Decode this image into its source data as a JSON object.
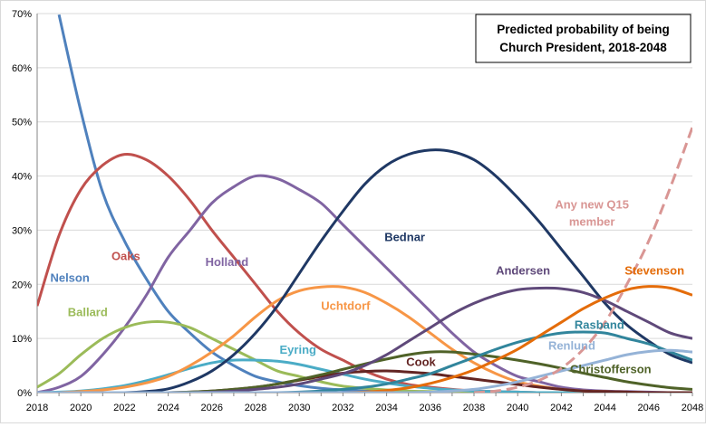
{
  "chart_data": {
    "type": "line",
    "title": "Predicted probability  of being\nChurch President, 2018-2048",
    "x": [
      2018,
      2019,
      2020,
      2021,
      2022,
      2023,
      2024,
      2025,
      2026,
      2027,
      2028,
      2029,
      2030,
      2031,
      2032,
      2033,
      2034,
      2035,
      2036,
      2037,
      2038,
      2039,
      2040,
      2041,
      2042,
      2043,
      2044,
      2045,
      2046,
      2047,
      2048
    ],
    "xticks": [
      "2018",
      "2020",
      "2022",
      "2024",
      "2026",
      "2028",
      "2030",
      "2032",
      "2034",
      "2036",
      "2038",
      "2040",
      "2042",
      "2044",
      "2046",
      "2048"
    ],
    "yticks": [
      "0%",
      "10%",
      "20%",
      "30%",
      "40%",
      "50%",
      "60%",
      "70%"
    ],
    "ylim": [
      0,
      70
    ],
    "xlim": [
      2018,
      2048
    ],
    "grid": "horizontal",
    "series": [
      {
        "name": "Nelson",
        "color": "#4f81bd",
        "dash": false,
        "values": [
          null,
          69.8,
          52,
          37,
          28,
          21,
          15,
          11,
          7.5,
          5,
          3,
          2,
          1.3,
          0.8,
          0.5,
          0.3,
          0.2,
          0.1,
          0.1,
          0,
          0,
          0,
          0,
          0,
          0,
          0,
          0,
          0,
          0,
          0,
          0
        ]
      },
      {
        "name": "Oaks",
        "color": "#c0504d",
        "dash": false,
        "values": [
          16,
          29,
          37.5,
          42,
          44,
          43,
          40,
          35.5,
          30,
          25,
          20,
          15,
          11,
          8,
          6,
          4,
          2.5,
          1.5,
          1,
          0.6,
          0.3,
          0.2,
          0.1,
          0,
          0,
          0,
          0,
          0,
          0,
          0,
          0
        ]
      },
      {
        "name": "Holland",
        "color": "#8064a2",
        "dash": false,
        "values": [
          0,
          1,
          3,
          7,
          12,
          18,
          25,
          30,
          35,
          38,
          40,
          39.5,
          37.5,
          35,
          31,
          27,
          23,
          19,
          15,
          11,
          7.5,
          5,
          3,
          2,
          1,
          0.5,
          0.3,
          0.2,
          0.1,
          0,
          0
        ]
      },
      {
        "name": "Ballard",
        "color": "#9bbb59",
        "dash": false,
        "values": [
          1,
          3.5,
          7,
          10,
          12,
          13,
          13,
          12,
          10,
          8,
          6,
          4,
          3,
          2,
          1.2,
          0.8,
          0.5,
          0.3,
          0.2,
          0.1,
          0,
          0,
          0,
          0,
          0,
          0,
          0,
          0,
          0,
          0,
          0
        ]
      },
      {
        "name": "Eyring",
        "color": "#4bacc6",
        "dash": false,
        "values": [
          0,
          0.1,
          0.3,
          0.7,
          1.3,
          2.2,
          3.3,
          4.5,
          5.5,
          6,
          6,
          5.8,
          5.2,
          4.3,
          3.4,
          2.5,
          1.8,
          1.2,
          0.8,
          0.5,
          0.3,
          0.2,
          0.1,
          0,
          0,
          0,
          0,
          0,
          0,
          0,
          0
        ]
      },
      {
        "name": "Uchtdorf",
        "color": "#f79646",
        "dash": false,
        "values": [
          0,
          0,
          0.2,
          0.5,
          1,
          1.8,
          3,
          5,
          7.5,
          10.5,
          14,
          17,
          18.8,
          19.5,
          19.5,
          18.5,
          16.5,
          14,
          11,
          8,
          5.5,
          3.5,
          2,
          1.2,
          0.6,
          0.3,
          0.2,
          0.1,
          0,
          0,
          0
        ]
      },
      {
        "name": "Bednar",
        "color": "#1f3864",
        "dash": false,
        "values": [
          0,
          0,
          0,
          0,
          0,
          0.2,
          0.7,
          2,
          4,
          7,
          11,
          16,
          22,
          28,
          33.5,
          38.5,
          42,
          44,
          44.8,
          44.5,
          43,
          40,
          36,
          31.5,
          26.5,
          21.5,
          16.5,
          12.5,
          9.5,
          7,
          5.5
        ]
      },
      {
        "name": "Cook",
        "color": "#632523",
        "dash": false,
        "values": [
          0,
          0,
          0,
          0,
          0,
          0,
          0,
          0.1,
          0.3,
          0.6,
          1,
          1.6,
          2.3,
          3,
          3.6,
          3.9,
          4,
          3.8,
          3.5,
          3,
          2.5,
          2,
          1.5,
          1,
          0.6,
          0.3,
          0.2,
          0.1,
          0,
          0,
          0
        ]
      },
      {
        "name": "Christofferson",
        "color": "#4f6228",
        "dash": false,
        "values": [
          0,
          0,
          0,
          0,
          0,
          0,
          0,
          0.1,
          0.3,
          0.6,
          1,
          1.6,
          2.4,
          3.3,
          4.3,
          5.3,
          6.2,
          7,
          7.5,
          7.5,
          7.1,
          6.6,
          6,
          5.3,
          4.5,
          3.6,
          2.8,
          2,
          1.4,
          0.9,
          0.6
        ]
      },
      {
        "name": "Andersen",
        "color": "#5f497a",
        "dash": false,
        "values": [
          0,
          0,
          0,
          0,
          0,
          0,
          0,
          0,
          0.1,
          0.3,
          0.6,
          1,
          1.6,
          2.5,
          3.5,
          5,
          7,
          9.5,
          12,
          14.5,
          16.5,
          18,
          19,
          19.3,
          19.2,
          18.5,
          17,
          15,
          13,
          11,
          10
        ]
      },
      {
        "name": "Rasband",
        "color": "#31859c",
        "dash": false,
        "values": [
          0,
          0,
          0,
          0,
          0,
          0,
          0,
          0,
          0,
          0,
          0,
          0,
          0.1,
          0.3,
          0.6,
          1,
          1.6,
          2.5,
          3.5,
          5,
          6.5,
          8,
          9.3,
          10.3,
          11,
          11.2,
          11,
          10,
          9,
          7.5,
          6
        ]
      },
      {
        "name": "Stevenson",
        "color": "#e46c0a",
        "dash": false,
        "values": [
          0,
          0,
          0,
          0,
          0,
          0,
          0,
          0,
          0,
          0,
          0,
          0,
          0,
          0,
          0,
          0.1,
          0.4,
          0.9,
          1.7,
          2.8,
          4.2,
          6,
          8,
          10.5,
          13,
          15.5,
          17.5,
          19,
          19.6,
          19.3,
          18
        ]
      },
      {
        "name": "Renlund",
        "color": "#95b3d7",
        "dash": false,
        "values": [
          0,
          0,
          0,
          0,
          0,
          0,
          0,
          0,
          0,
          0,
          0,
          0,
          0,
          0,
          0,
          0,
          0,
          0,
          0.1,
          0.3,
          0.6,
          1.2,
          2,
          3,
          4,
          5,
          6,
          7,
          7.6,
          7.8,
          7.5
        ]
      },
      {
        "name": "Any new Q15\nmember",
        "color": "#d99694",
        "dash": true,
        "values": [
          null,
          null,
          null,
          null,
          null,
          null,
          null,
          null,
          null,
          null,
          null,
          null,
          null,
          null,
          null,
          null,
          null,
          null,
          null,
          null,
          0,
          0.3,
          1,
          2.3,
          4.5,
          8,
          13,
          20,
          28,
          38,
          49
        ]
      }
    ],
    "labels": [
      {
        "series": "Nelson",
        "text": "Nelson"
      },
      {
        "series": "Oaks",
        "text": "Oaks"
      },
      {
        "series": "Holland",
        "text": "Holland"
      },
      {
        "series": "Bednar",
        "text": "Bednar"
      },
      {
        "series": "Any new Q15\nmember",
        "text": "Any new Q15\nmember"
      },
      {
        "series": "Ballard",
        "text": "Ballard"
      },
      {
        "series": "Uchtdorf",
        "text": "Uchtdorf"
      },
      {
        "series": "Andersen",
        "text": "Andersen"
      },
      {
        "series": "Stevenson",
        "text": "Stevenson"
      },
      {
        "series": "Eyring",
        "text": "Eyring"
      },
      {
        "series": "Cook",
        "text": "Cook"
      },
      {
        "series": "Rasband",
        "text": "Rasband"
      },
      {
        "series": "Renlund",
        "text": "Renlund"
      },
      {
        "series": "Christofferson",
        "text": "Christofferson"
      }
    ]
  }
}
